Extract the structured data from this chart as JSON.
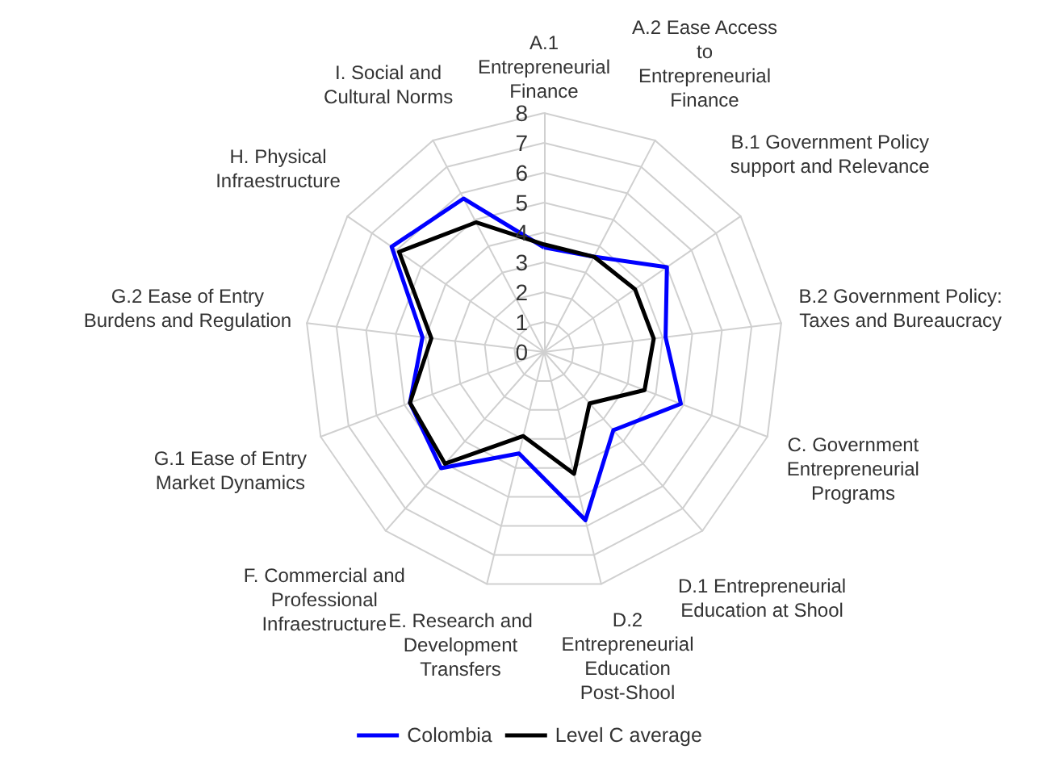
{
  "chart_data": {
    "type": "radar",
    "categories": [
      "A.1 Entrepreneurial Finance",
      "A.2 Ease Access to Entrepreneurial Finance",
      "B.1 Government Policy support and Relevance",
      "B.2 Government Policy: Taxes and Bureaucracy",
      "C. Government Entrepreneurial Programs",
      "D.1 Entrepreneurial Education at Shool",
      "D.2 Entrepreneurial Education Post-Shool",
      "E. Research and Development Transfers",
      "F. Commercial and Professional Infraestructure",
      "G.1 Ease of Entry Market Dynamics",
      "G.2 Ease of Entry Burdens and Regulation",
      "H. Physical Infraestructure",
      "I. Social and Cultural Norms"
    ],
    "series": [
      {
        "name": "Colombia",
        "color": "#0000ff",
        "values": [
          3.5,
          3.6,
          5.0,
          4.1,
          4.9,
          3.5,
          5.8,
          3.5,
          5.2,
          4.8,
          4.1,
          6.2,
          5.8
        ]
      },
      {
        "name": "Level C average",
        "color": "#000000",
        "values": [
          3.6,
          3.6,
          3.7,
          3.7,
          3.6,
          2.3,
          4.2,
          2.9,
          5.0,
          4.8,
          3.8,
          5.9,
          4.9
        ]
      }
    ],
    "ylim": [
      0,
      8
    ],
    "yticks": [
      0,
      1,
      2,
      3,
      4,
      5,
      6,
      7,
      8
    ],
    "grid": true,
    "legend": "bottom",
    "marker": "none"
  }
}
